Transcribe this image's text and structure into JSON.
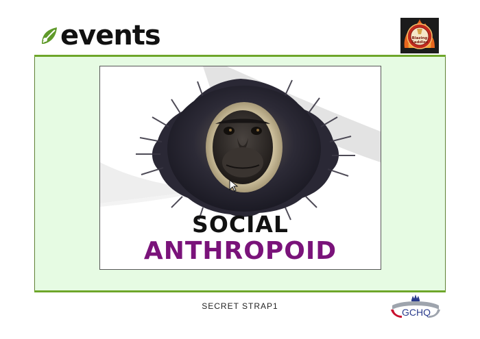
{
  "header": {
    "logo_text": "events",
    "logo_icon": "leaf-icon",
    "badge_icon": "flaming-seal-icon",
    "badge_text_line1": "Blazing",
    "badge_text_line2": "Saddles"
  },
  "slide": {
    "image_icon": "gibbon-image",
    "title_line1": "SOCIAL",
    "title_line2": "ANTHROPOID"
  },
  "footer": {
    "classification": "SECRET STRAP1",
    "org_logo_text": "GCHQ",
    "org_logo_icon": "crown-icon"
  },
  "colors": {
    "accent_green": "#6ea62a",
    "panel_bg": "#e6fbe3",
    "title_purple": "#7a137a",
    "gchq_blue": "#2a3b8c",
    "gchq_red": "#c8102e"
  }
}
